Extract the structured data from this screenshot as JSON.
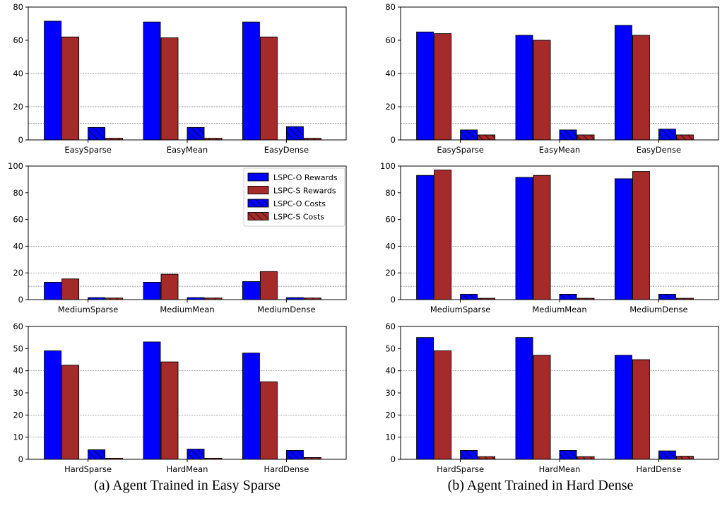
{
  "captions": [
    "(a) Agent Trained in Easy Sparse",
    "(b) Agent Trained in Hard Dense"
  ],
  "colors": {
    "lspc_o": "#0000FF",
    "lspc_s": "#A52A2A",
    "edge": "#000000",
    "grid": "#777777"
  },
  "legend": {
    "placement": "top-right of left middle panel",
    "entries": [
      {
        "label": "LSPC-O Rewards",
        "series": "LSPC-O Rewards",
        "hatch": false
      },
      {
        "label": "LSPC-S Rewards",
        "series": "LSPC-S Rewards",
        "hatch": false
      },
      {
        "label": "LSPC-O Costs",
        "series": "LSPC-O Costs",
        "hatch": true
      },
      {
        "label": "LSPC-S Costs",
        "series": "LSPC-S Costs",
        "hatch": true
      }
    ]
  },
  "chart_data": [
    {
      "type": "bar",
      "panel": "a",
      "row": 0,
      "categories": [
        "EasySparse",
        "EasyMean",
        "EasyDense"
      ],
      "ylim": [
        0,
        80
      ],
      "yticks": [
        0,
        20,
        40,
        60,
        80
      ],
      "hlines": [
        10,
        20,
        40
      ],
      "grid": "dashed horizontal",
      "series": [
        {
          "name": "LSPC-O Rewards",
          "color": "#0000FF",
          "hatch": false,
          "values": [
            71.5,
            71,
            71
          ]
        },
        {
          "name": "LSPC-S Rewards",
          "color": "#A52A2A",
          "hatch": false,
          "values": [
            62,
            61.5,
            62
          ]
        },
        {
          "name": "LSPC-O Costs",
          "color": "#0000FF",
          "hatch": true,
          "values": [
            7.5,
            7.5,
            8
          ]
        },
        {
          "name": "LSPC-S Costs",
          "color": "#A52A2A",
          "hatch": true,
          "values": [
            1,
            1,
            1
          ]
        }
      ]
    },
    {
      "type": "bar",
      "panel": "a",
      "row": 1,
      "categories": [
        "MediumSparse",
        "MediumMean",
        "MediumDense"
      ],
      "ylim": [
        0,
        100
      ],
      "yticks": [
        0,
        20,
        40,
        60,
        80,
        100
      ],
      "hlines": [
        10,
        20,
        40
      ],
      "grid": "dashed horizontal",
      "series": [
        {
          "name": "LSPC-O Rewards",
          "color": "#0000FF",
          "hatch": false,
          "values": [
            13,
            13,
            13.5
          ]
        },
        {
          "name": "LSPC-S Rewards",
          "color": "#A52A2A",
          "hatch": false,
          "values": [
            15.5,
            19,
            21
          ]
        },
        {
          "name": "LSPC-O Costs",
          "color": "#0000FF",
          "hatch": true,
          "values": [
            1.5,
            1.5,
            1.5
          ]
        },
        {
          "name": "LSPC-S Costs",
          "color": "#A52A2A",
          "hatch": true,
          "values": [
            1.2,
            1.2,
            1.2
          ]
        }
      ]
    },
    {
      "type": "bar",
      "panel": "a",
      "row": 2,
      "categories": [
        "HardSparse",
        "HardMean",
        "HardDense"
      ],
      "ylim": [
        0,
        60
      ],
      "yticks": [
        0,
        10,
        20,
        30,
        40,
        50,
        60
      ],
      "hlines": [
        10,
        20,
        40
      ],
      "grid": "dashed horizontal",
      "series": [
        {
          "name": "LSPC-O Rewards",
          "color": "#0000FF",
          "hatch": false,
          "values": [
            49,
            53,
            48
          ]
        },
        {
          "name": "LSPC-S Rewards",
          "color": "#A52A2A",
          "hatch": false,
          "values": [
            42.5,
            44,
            35
          ]
        },
        {
          "name": "LSPC-O Costs",
          "color": "#0000FF",
          "hatch": true,
          "values": [
            4.3,
            4.6,
            4
          ]
        },
        {
          "name": "LSPC-S Costs",
          "color": "#A52A2A",
          "hatch": true,
          "values": [
            0.5,
            0.5,
            0.8
          ]
        }
      ]
    },
    {
      "type": "bar",
      "panel": "b",
      "row": 0,
      "categories": [
        "EasySparse",
        "EasyMean",
        "EasyDense"
      ],
      "ylim": [
        0,
        80
      ],
      "yticks": [
        0,
        20,
        40,
        60,
        80
      ],
      "hlines": [
        10,
        20,
        40
      ],
      "grid": "dashed horizontal",
      "series": [
        {
          "name": "LSPC-O Rewards",
          "color": "#0000FF",
          "hatch": false,
          "values": [
            65,
            63,
            69
          ]
        },
        {
          "name": "LSPC-S Rewards",
          "color": "#A52A2A",
          "hatch": false,
          "values": [
            64,
            60,
            63
          ]
        },
        {
          "name": "LSPC-O Costs",
          "color": "#0000FF",
          "hatch": true,
          "values": [
            6,
            6,
            6.5
          ]
        },
        {
          "name": "LSPC-S Costs",
          "color": "#A52A2A",
          "hatch": true,
          "values": [
            3,
            3,
            3
          ]
        }
      ]
    },
    {
      "type": "bar",
      "panel": "b",
      "row": 1,
      "categories": [
        "MediumSparse",
        "MediumMean",
        "MediumDense"
      ],
      "ylim": [
        0,
        100
      ],
      "yticks": [
        0,
        20,
        40,
        60,
        80,
        100
      ],
      "hlines": [
        10,
        20,
        40
      ],
      "grid": "dashed horizontal",
      "series": [
        {
          "name": "LSPC-O Rewards",
          "color": "#0000FF",
          "hatch": false,
          "values": [
            93,
            91.5,
            90.5
          ]
        },
        {
          "name": "LSPC-S Rewards",
          "color": "#A52A2A",
          "hatch": false,
          "values": [
            97,
            93,
            96
          ]
        },
        {
          "name": "LSPC-O Costs",
          "color": "#0000FF",
          "hatch": true,
          "values": [
            4,
            4,
            4
          ]
        },
        {
          "name": "LSPC-S Costs",
          "color": "#A52A2A",
          "hatch": true,
          "values": [
            1,
            1,
            1
          ]
        }
      ]
    },
    {
      "type": "bar",
      "panel": "b",
      "row": 2,
      "categories": [
        "HardSparse",
        "HardMean",
        "HardDense"
      ],
      "ylim": [
        0,
        60
      ],
      "yticks": [
        0,
        10,
        20,
        30,
        40,
        50,
        60
      ],
      "hlines": [
        10,
        20,
        40
      ],
      "grid": "dashed horizontal",
      "series": [
        {
          "name": "LSPC-O Rewards",
          "color": "#0000FF",
          "hatch": false,
          "values": [
            55,
            55,
            47
          ]
        },
        {
          "name": "LSPC-S Rewards",
          "color": "#A52A2A",
          "hatch": false,
          "values": [
            49,
            47,
            45
          ]
        },
        {
          "name": "LSPC-O Costs",
          "color": "#0000FF",
          "hatch": true,
          "values": [
            4,
            4,
            3.8
          ]
        },
        {
          "name": "LSPC-S Costs",
          "color": "#A52A2A",
          "hatch": true,
          "values": [
            1.2,
            1.2,
            1.4
          ]
        }
      ]
    }
  ]
}
